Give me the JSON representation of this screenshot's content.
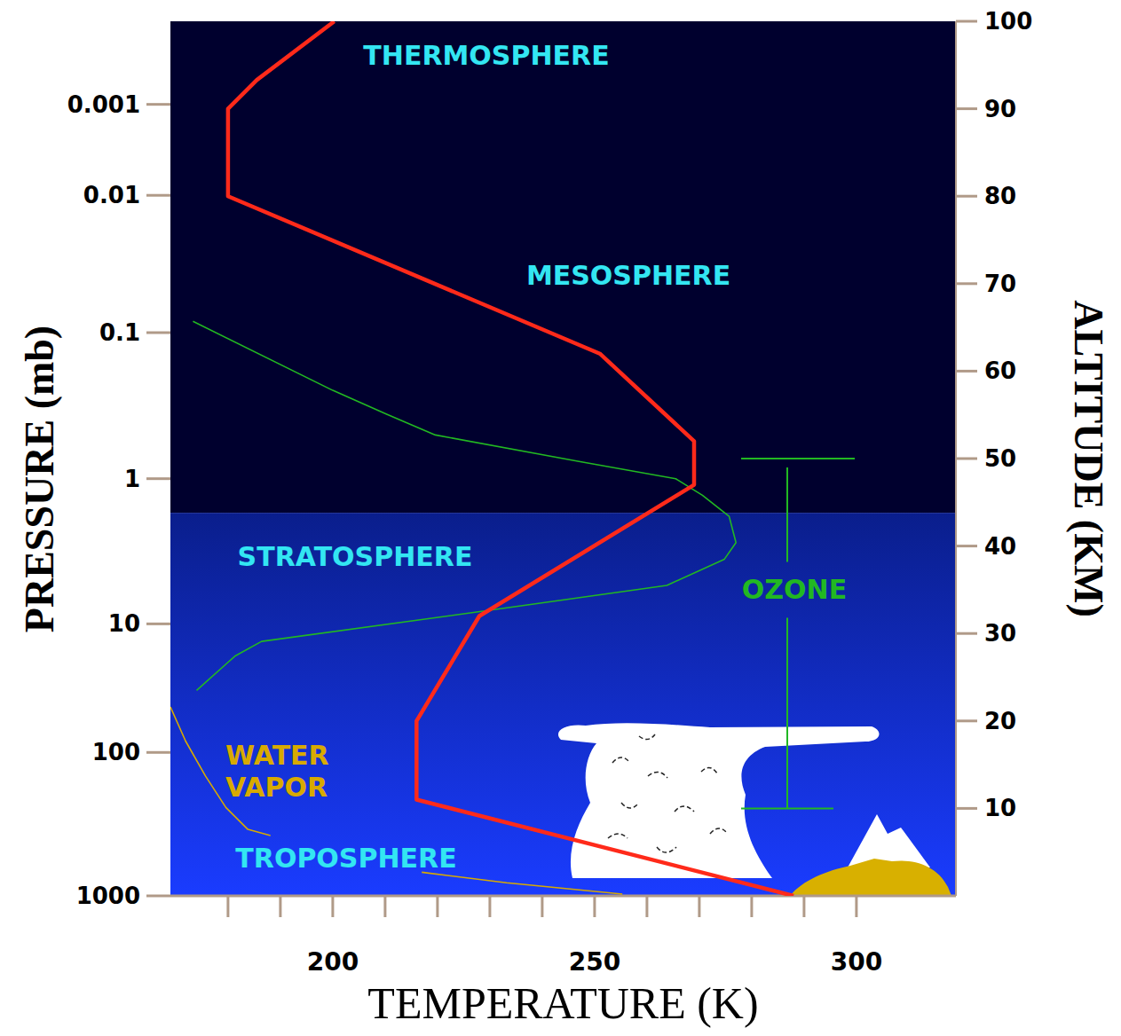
{
  "chart_data": {
    "type": "line",
    "xlabel": "TEMPERATURE (K)",
    "ylabel": "ALTITUDE (KM)",
    "xlim": [
      169,
      319
    ],
    "xticks": [
      200,
      250,
      300
    ],
    "x_minor_ticks": [
      180,
      190,
      210,
      220,
      230,
      240,
      260,
      270,
      280,
      290
    ],
    "ylim": [
      0,
      100
    ],
    "yticks": [
      10,
      20,
      30,
      40,
      50,
      60,
      70,
      80,
      90,
      100
    ],
    "pressure_axis": {
      "label": "PRESSURE (mb)",
      "ticks": [
        1000,
        100,
        10,
        1,
        0.1,
        0.01,
        0.001
      ],
      "tick_altitudes": [
        0,
        16.4,
        31.1,
        47.7,
        64.4,
        80.1,
        90.5
      ]
    },
    "series": [
      {
        "color": "#ff2a1a",
        "x": [
          288,
          216,
          216,
          228,
          269,
          269,
          251,
          180,
          180,
          185.5,
          200.3
        ],
        "values": [
          0,
          11,
          20,
          32,
          47,
          52,
          62,
          80,
          90,
          93.3,
          100
        ]
      },
      {
        "name": "OZONE",
        "color": "#22b822",
        "range": [
          10,
          50
        ],
        "x": [
          173.3,
          200,
          210.2,
          219.6,
          246.8,
          265.5,
          270.6,
          275.7,
          277,
          274.8,
          263.8,
          228.1,
          186.4,
          181.3,
          174
        ],
        "values": [
          65.7,
          57.8,
          55.1,
          52.7,
          49.7,
          47.7,
          45.8,
          43.4,
          40.4,
          38.5,
          35.5,
          32.5,
          29.1,
          27.4,
          23.5
        ]
      },
      {
        "name": "WATER VAPOR",
        "color": "#d8aa00",
        "x": [
          169,
          171.9,
          175.7,
          179.6,
          183.8,
          188.1,
          null,
          217,
          233.2,
          255.3
        ],
        "values": [
          21.6,
          17.7,
          13.7,
          10.1,
          7.6,
          6.9,
          null,
          2.7,
          1.5,
          0.2
        ]
      }
    ],
    "annotations": [
      "THERMOSPHERE",
      "MESOSPHERE",
      "STRATOSPHERE",
      "TROPOSPHERE"
    ],
    "bands": [
      {
        "ylim": [
          43.8,
          100
        ],
        "color": "#00002e"
      },
      {
        "ylim": [
          0,
          43.8
        ],
        "colors": [
          "#0a1e8c",
          "#1a3cff"
        ]
      }
    ]
  }
}
